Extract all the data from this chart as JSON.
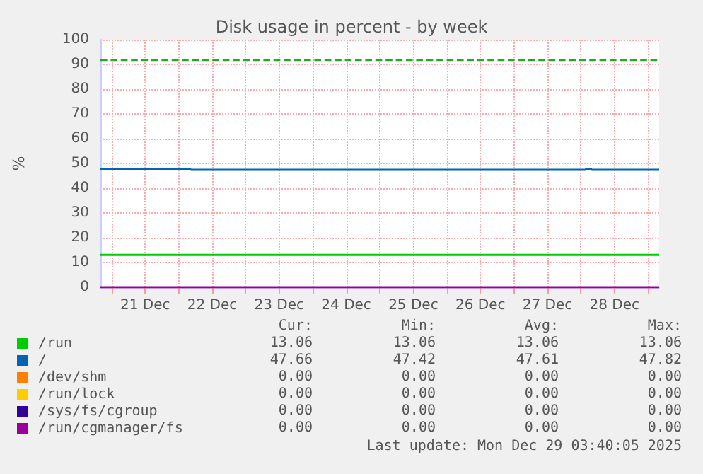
{
  "chart_data": {
    "type": "line",
    "title": "Disk usage in percent - by week",
    "ylabel": "%",
    "x": [
      "2025-12-20T20:00",
      "2025-12-22T04:00",
      "2025-12-22T04:30",
      "2025-12-28T01:30",
      "2025-12-28T02:00",
      "2025-12-28T03:30",
      "2025-12-28T04:00",
      "2025-12-29T04:00"
    ],
    "series": [
      {
        "name": "/run",
        "color": "#00cc00",
        "values": [
          13.1,
          13.1,
          13.1,
          13.1,
          13.1,
          13.1,
          13.1,
          13.1
        ]
      },
      {
        "name": "/",
        "color": "#0066b3",
        "values": [
          47.8,
          47.8,
          47.4,
          47.4,
          47.8,
          47.8,
          47.4,
          47.4
        ]
      },
      {
        "name": "/dev/shm",
        "color": "#ff8000",
        "values": [
          null,
          null,
          null,
          null,
          null,
          null,
          null,
          null
        ]
      },
      {
        "name": "/run/lock",
        "color": "#ffcc00",
        "values": [
          null,
          null,
          null,
          null,
          null,
          null,
          null,
          null
        ]
      },
      {
        "name": "/sys/fs/cgroup",
        "color": "#330099",
        "values": [
          null,
          null,
          null,
          null,
          null,
          null,
          null,
          null
        ]
      },
      {
        "name": "/run/cgmanager/fs",
        "color": "#990099",
        "values": [
          0,
          0,
          0,
          0,
          0,
          0,
          0,
          0
        ]
      }
    ],
    "xlim": [
      "2025-12-20T20:00",
      "2025-12-29T04:00"
    ],
    "xticks": [
      {
        "value": "2025-12-21",
        "label": null
      },
      {
        "value": "2025-12-21T12:00",
        "label": "21 Dec"
      },
      {
        "value": "2025-12-22",
        "label": null
      },
      {
        "value": "2025-12-22T12:00",
        "label": "22 Dec"
      },
      {
        "value": "2025-12-23",
        "label": null
      },
      {
        "value": "2025-12-23T12:00",
        "label": "23 Dec"
      },
      {
        "value": "2025-12-24",
        "label": null
      },
      {
        "value": "2025-12-24T12:00",
        "label": "24 Dec"
      },
      {
        "value": "2025-12-25",
        "label": null
      },
      {
        "value": "2025-12-25T12:00",
        "label": "25 Dec"
      },
      {
        "value": "2025-12-26",
        "label": null
      },
      {
        "value": "2025-12-26T12:00",
        "label": "26 Dec"
      },
      {
        "value": "2025-12-27",
        "label": null
      },
      {
        "value": "2025-12-27T12:00",
        "label": "27 Dec"
      },
      {
        "value": "2025-12-28",
        "label": null
      },
      {
        "value": "2025-12-28T12:00",
        "label": "28 Dec"
      },
      {
        "value": "2025-12-29",
        "label": null
      }
    ],
    "ylim": [
      0,
      100
    ],
    "yticks": [
      0,
      10,
      20,
      30,
      40,
      50,
      60,
      70,
      80,
      90,
      100
    ],
    "ref_lines": [
      {
        "axis": "y",
        "value": 92,
        "color": "#22aa22",
        "line_style": "dashed"
      }
    ],
    "grid": true,
    "legend": "bottom left",
    "marker": "none",
    "line_style": "solid",
    "annotations": [
      "Cur:",
      "Min:",
      "Avg:",
      "Max:",
      "13.06",
      "13.06",
      "13.06",
      "13.06",
      "47.66",
      "47.42",
      "47.61",
      "47.82",
      "0.00",
      "0.00",
      "0.00",
      "0.00",
      "0.00",
      "0.00",
      "0.00",
      "0.00",
      "0.00",
      "0.00",
      "0.00",
      "0.00",
      "0.00",
      "0.00",
      "0.00",
      "0.00",
      "Last update: Mon Dec 29 03:40:05 2025"
    ]
  }
}
